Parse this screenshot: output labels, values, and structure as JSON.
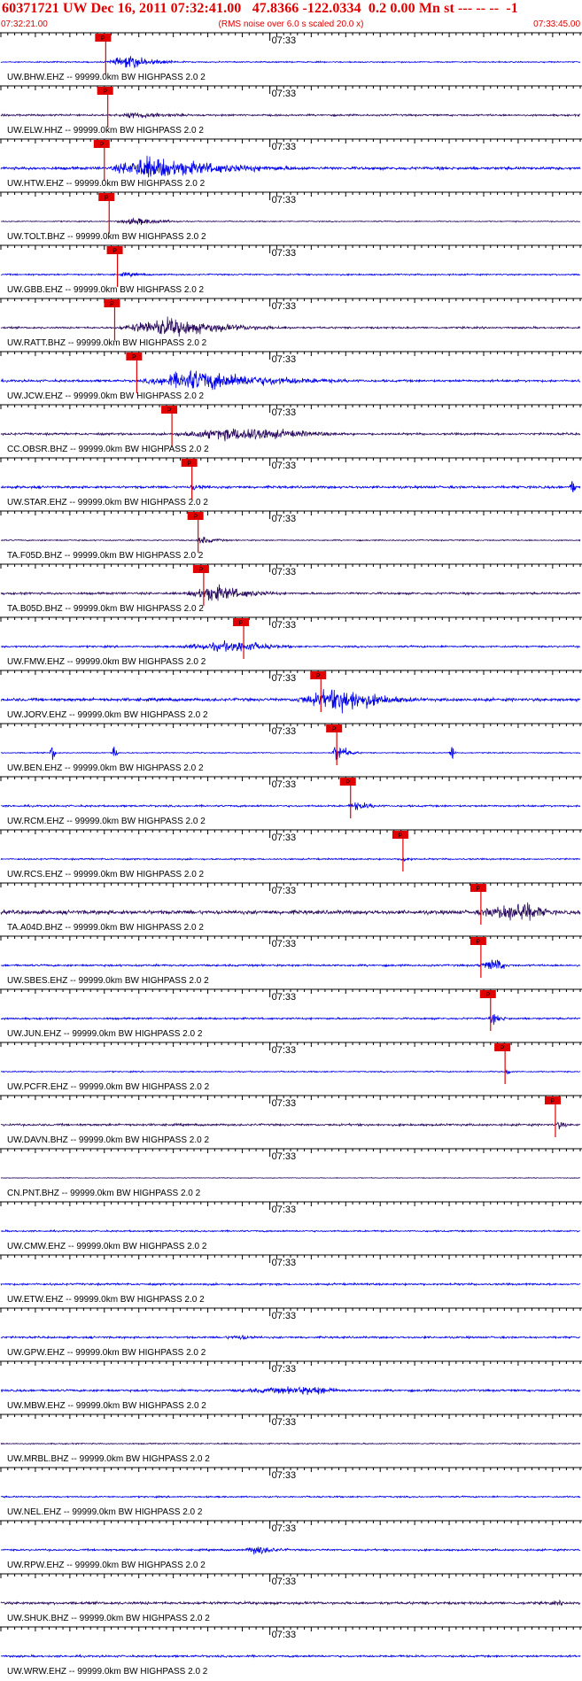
{
  "header": {
    "title": "60371721 UW Dec 16, 2011 07:32:41.00   47.8366 -122.0334  0.2 0.00 Mn st --- -- --  -1",
    "start_time": "07:32:21.00",
    "rms_note": "(RMS noise over 6.0 s scaled 20.0 x)",
    "end_time": "07:33:45.00"
  },
  "chart_data": {
    "type": "seismogram-record-section",
    "time_start": "07:32:21.00",
    "time_end": "07:33:45.00",
    "duration_s": 84,
    "minute_mark": "07:33",
    "minute_mark_offset_s": 39,
    "pick_label": "P",
    "colors": {
      "blue": "#0000ee",
      "dark": "#2a0a5e",
      "pick": "#e00000",
      "axis": "#000000"
    },
    "traces": [
      {
        "label": "UW.BHW.EHZ -- 99999.0km BW  HIGHPASS  2.0  2",
        "color": "blue",
        "pick_s": 15.2,
        "event": {
          "start": 14.5,
          "peak": 19,
          "end": 30,
          "amp": 0.85
        },
        "noise": 0.08
      },
      {
        "label": "UW.ELW.HHZ -- 99999.0km BW  HIGHPASS  2.0  2",
        "color": "dark",
        "pick_s": 15.5,
        "event": {
          "start": 15,
          "peak": 20,
          "end": 40,
          "amp": 0.45
        },
        "noise": 0.12
      },
      {
        "label": "UW.HTW.EHZ -- 99999.0km BW  HIGHPASS  2.0  2",
        "color": "blue",
        "pick_s": 15.0,
        "event": {
          "start": 15,
          "peak": 21,
          "end": 55,
          "amp": 1.6
        },
        "noise": 0.18
      },
      {
        "label": "UW.TOLT.BHZ -- 99999.0km BW  HIGHPASS  2.0  2",
        "color": "dark",
        "pick_s": 15.7,
        "event": {
          "start": 15.5,
          "peak": 20,
          "end": 32,
          "amp": 0.5
        },
        "noise": 0.07
      },
      {
        "label": "UW.GBB.EHZ -- 99999.0km BW  HIGHPASS  2.0  2",
        "color": "blue",
        "pick_s": 16.9,
        "event": {
          "start": 16.5,
          "peak": 18,
          "end": 30,
          "amp": 0.3
        },
        "noise": 0.1
      },
      {
        "label": "UW.RATT.BHZ -- 99999.0km BW  HIGHPASS  2.0  2",
        "color": "dark",
        "pick_s": 16.5,
        "event": {
          "start": 16,
          "peak": 24,
          "end": 50,
          "amp": 1.3
        },
        "noise": 0.12
      },
      {
        "label": "UW.JCW.EHZ -- 99999.0km BW  HIGHPASS  2.0  2",
        "color": "blue",
        "pick_s": 19.7,
        "event": {
          "start": 19.5,
          "peak": 28,
          "end": 62,
          "amp": 1.5
        },
        "noise": 0.15
      },
      {
        "label": "CC.OBSR.BHZ -- 99999.0km BW  HIGHPASS  2.0  2",
        "color": "dark",
        "pick_s": 24.8,
        "event": {
          "start": 22,
          "peak": 36,
          "end": 60,
          "amp": 1.0
        },
        "noise": 0.14
      },
      {
        "label": "UW.STAR.EHZ -- 99999.0km BW  HIGHPASS  2.0  2",
        "color": "blue",
        "pick_s": 27.7,
        "event": {
          "start": 27,
          "peak": 28,
          "end": 36,
          "amp": 0.5
        },
        "noise": 0.16,
        "spikes": [
          {
            "t": 83,
            "amp": 1.3
          }
        ]
      },
      {
        "label": "TA.F05D.BHZ -- 99999.0km BW  HIGHPASS  2.0  2",
        "color": "dark",
        "pick_s": 28.6,
        "event": {
          "start": 28,
          "peak": 29,
          "end": 36,
          "amp": 0.55
        },
        "noise": 0.08
      },
      {
        "label": "TA.B05D.BHZ -- 99999.0km BW  HIGHPASS  2.0  2",
        "color": "dark",
        "pick_s": 29.4,
        "event": {
          "start": 26,
          "peak": 31,
          "end": 46,
          "amp": 1.2
        },
        "noise": 0.14
      },
      {
        "label": "UW.FMW.EHZ -- 99999.0km BW  HIGHPASS  2.0  2",
        "color": "blue",
        "pick_s": 35.2,
        "event": {
          "start": 23,
          "peak": 35,
          "end": 48,
          "amp": 0.8
        },
        "noise": 0.12
      },
      {
        "label": "UW.JORV.EHZ -- 99999.0km BW  HIGHPASS  2.0  2",
        "color": "blue",
        "pick_s": 46.4,
        "event": {
          "start": 41,
          "peak": 50,
          "end": 66,
          "amp": 1.7
        },
        "noise": 0.2
      },
      {
        "label": "UW.BEN.EHZ -- 99999.0km BW  HIGHPASS  2.0  2",
        "color": "blue",
        "pick_s": 48.7,
        "event": {
          "start": 48,
          "peak": 49,
          "end": 53,
          "amp": 1.2
        },
        "noise": 0.07,
        "spikes": [
          {
            "t": 7.5,
            "amp": 1.2
          },
          {
            "t": 16.5,
            "amp": 1.1
          },
          {
            "t": 48.5,
            "amp": 1.2
          },
          {
            "t": 65.5,
            "amp": 1.2
          }
        ]
      },
      {
        "label": "UW.RCM.EHZ -- 99999.0km BW  HIGHPASS  2.0  2",
        "color": "blue",
        "pick_s": 50.7,
        "event": {
          "start": 50,
          "peak": 51.5,
          "end": 60,
          "amp": 0.6
        },
        "noise": 0.12
      },
      {
        "label": "UW.RCS.EHZ -- 99999.0km BW  HIGHPASS  2.0  2",
        "color": "blue",
        "pick_s": 58.3,
        "event": {
          "start": 57.5,
          "peak": 58.5,
          "end": 62,
          "amp": 0.45
        },
        "noise": 0.1
      },
      {
        "label": "TA.A04D.BHZ -- 99999.0km BW  HIGHPASS  2.0  2",
        "color": "dark",
        "pick_s": 69.6,
        "event": {
          "start": 67,
          "peak": 76,
          "end": 84,
          "amp": 1.5
        },
        "noise": 0.25
      },
      {
        "label": "UW.SBES.EHZ -- 99999.0km BW  HIGHPASS  2.0  2",
        "color": "blue",
        "pick_s": 69.6,
        "event": {
          "start": 68.5,
          "peak": 72,
          "end": 75,
          "amp": 1.0
        },
        "noise": 0.13
      },
      {
        "label": "UW.JUN.EHZ -- 99999.0km BW  HIGHPASS  2.0  2",
        "color": "blue",
        "pick_s": 71.0,
        "event": {
          "start": 70.5,
          "peak": 71.5,
          "end": 76,
          "amp": 0.7
        },
        "noise": 0.12
      },
      {
        "label": "UW.PCFR.EHZ -- 99999.0km BW  HIGHPASS  2.0  2",
        "color": "blue",
        "pick_s": 73.1,
        "event": {
          "start": 72.5,
          "peak": 73.5,
          "end": 76,
          "amp": 0.4
        },
        "noise": 0.08
      },
      {
        "label": "UW.DAVN.BHZ -- 99999.0km BW  HIGHPASS  2.0  2",
        "color": "dark",
        "pick_s": 80.4,
        "event": {
          "start": 80,
          "peak": 81,
          "end": 84,
          "amp": 0.6
        },
        "noise": 0.14
      },
      {
        "label": "CN.PNT.BHZ -- 99999.0km BW  HIGHPASS  2.0  2",
        "color": "dark",
        "pick_s": null,
        "event": null,
        "noise": 0.05
      },
      {
        "label": "UW.CMW.EHZ -- 99999.0km BW  HIGHPASS  2.0  2",
        "color": "blue",
        "pick_s": null,
        "event": null,
        "noise": 0.1
      },
      {
        "label": "UW.ETW.EHZ -- 99999.0km BW  HIGHPASS  2.0  2",
        "color": "blue",
        "pick_s": null,
        "event": null,
        "noise": 0.13
      },
      {
        "label": "UW.GPW.EHZ -- 99999.0km BW  HIGHPASS  2.0  2",
        "color": "blue",
        "pick_s": null,
        "event": {
          "start": 30,
          "peak": 35,
          "end": 44,
          "amp": 0.35
        },
        "noise": 0.13
      },
      {
        "label": "UW.MBW.EHZ -- 99999.0km BW  HIGHPASS  2.0  2",
        "color": "blue",
        "pick_s": null,
        "event": {
          "start": 29,
          "peak": 46,
          "end": 56,
          "amp": 0.6
        },
        "noise": 0.14
      },
      {
        "label": "UW.MRBL.BHZ -- 99999.0km BW  HIGHPASS  2.0  2",
        "color": "dark",
        "pick_s": null,
        "event": null,
        "noise": 0.08
      },
      {
        "label": "UW.NEL.EHZ -- 99999.0km BW  HIGHPASS  2.0  2",
        "color": "blue",
        "pick_s": null,
        "event": null,
        "noise": 0.1
      },
      {
        "label": "UW.RPW.EHZ -- 99999.0km BW  HIGHPASS  2.0  2",
        "color": "blue",
        "pick_s": null,
        "event": {
          "start": 35,
          "peak": 37,
          "end": 46,
          "amp": 0.7
        },
        "noise": 0.12
      },
      {
        "label": "UW.SHUK.BHZ -- 99999.0km BW  HIGHPASS  2.0  2",
        "color": "dark",
        "pick_s": null,
        "event": {
          "start": 76,
          "peak": 81,
          "end": 84,
          "amp": 0.3
        },
        "noise": 0.17
      },
      {
        "label": "UW.WRW.EHZ -- 99999.0km BW  HIGHPASS  2.0  2",
        "color": "blue",
        "pick_s": null,
        "event": null,
        "noise": 0.13
      }
    ]
  }
}
